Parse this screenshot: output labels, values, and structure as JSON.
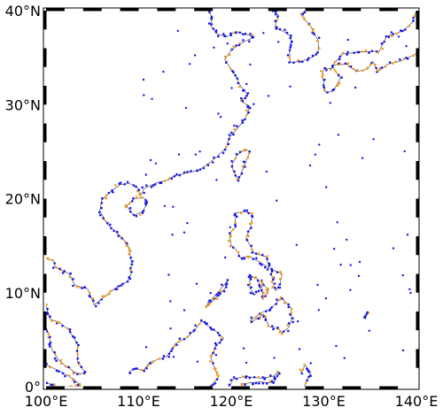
{
  "map": {
    "x_labels": [
      "100°E",
      "110°E",
      "120°E",
      "130°E",
      "140°E"
    ],
    "y_labels": [
      "0°",
      "10°N",
      "20°N",
      "30°N",
      "40°N"
    ]
  }
}
